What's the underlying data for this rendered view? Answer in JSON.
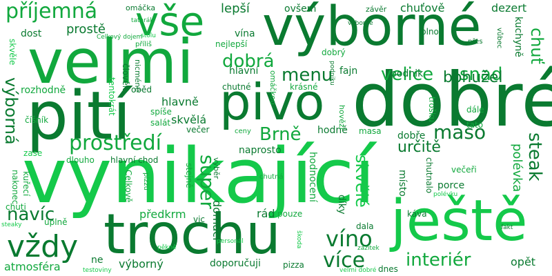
{
  "colors": {
    "dark": "#0a7a30",
    "mid": "#11a83d",
    "light": "#14c94a"
  },
  "words": [
    "vynikající",
    "dobré",
    "výborné",
    "velmi",
    "pití",
    "pivo",
    "trochu",
    "ještě",
    "vše",
    "příjemná",
    "vždy",
    "prostředí",
    "velice",
    "snad",
    "dobrá",
    "menu",
    "maso",
    "super",
    "steak",
    "víno",
    "více",
    "interiér",
    "Brně",
    "výborná",
    "chuť",
    "bohužel",
    "určitě",
    "skvělé",
    "navíc",
    "lepší",
    "ovšem",
    "chuťově",
    "dezert",
    "závěr",
    "hlavní",
    "fajn",
    "podnik",
    "polévka",
    "kuchyně",
    "prostě",
    "dost",
    "vína",
    "nejlepší",
    "porce",
    "večeři",
    "místo",
    "omáčka",
    "domácí",
    "předkrm",
    "díky",
    "hodnocení",
    "atmosféra",
    "výborný",
    "doporučuji",
    "pizza",
    "opět",
    "dnes",
    "dala",
    "káva",
    "rád",
    "pouze",
    "úplně",
    "chuti",
    "nakonec",
    "kuřecí",
    "zase",
    "skvělá",
    "večer",
    "ceny",
    "naprosto",
    "hodně",
    "dobře",
    "tato",
    "dále",
    "rozhodně",
    "oběd",
    "chutné",
    "krásné",
    "hlavně",
    "spíše",
    "salát",
    "číšník",
    "tentokrát",
    "dlouho",
    "hlavní chod",
    "stejně",
    "pizzu",
    "Celkově",
    "chutnalo",
    "chutná",
    "výběr",
    "trošku",
    "hovězí",
    "masa",
    "omáčkou",
    "člověk",
    "nicméně",
    "plno",
    "přes",
    "vůbec",
    "příliš",
    "stolu",
    "tatarák",
    "Celkový dojem",
    "výborně",
    "podniku",
    "pěkně",
    "personál",
    "škoda",
    "zážitek",
    "fakt",
    "polévku",
    "steaky",
    "testoviny",
    "velmi dobré",
    "skvěle",
    "dobrý",
    "ne",
    "vic"
  ]
}
